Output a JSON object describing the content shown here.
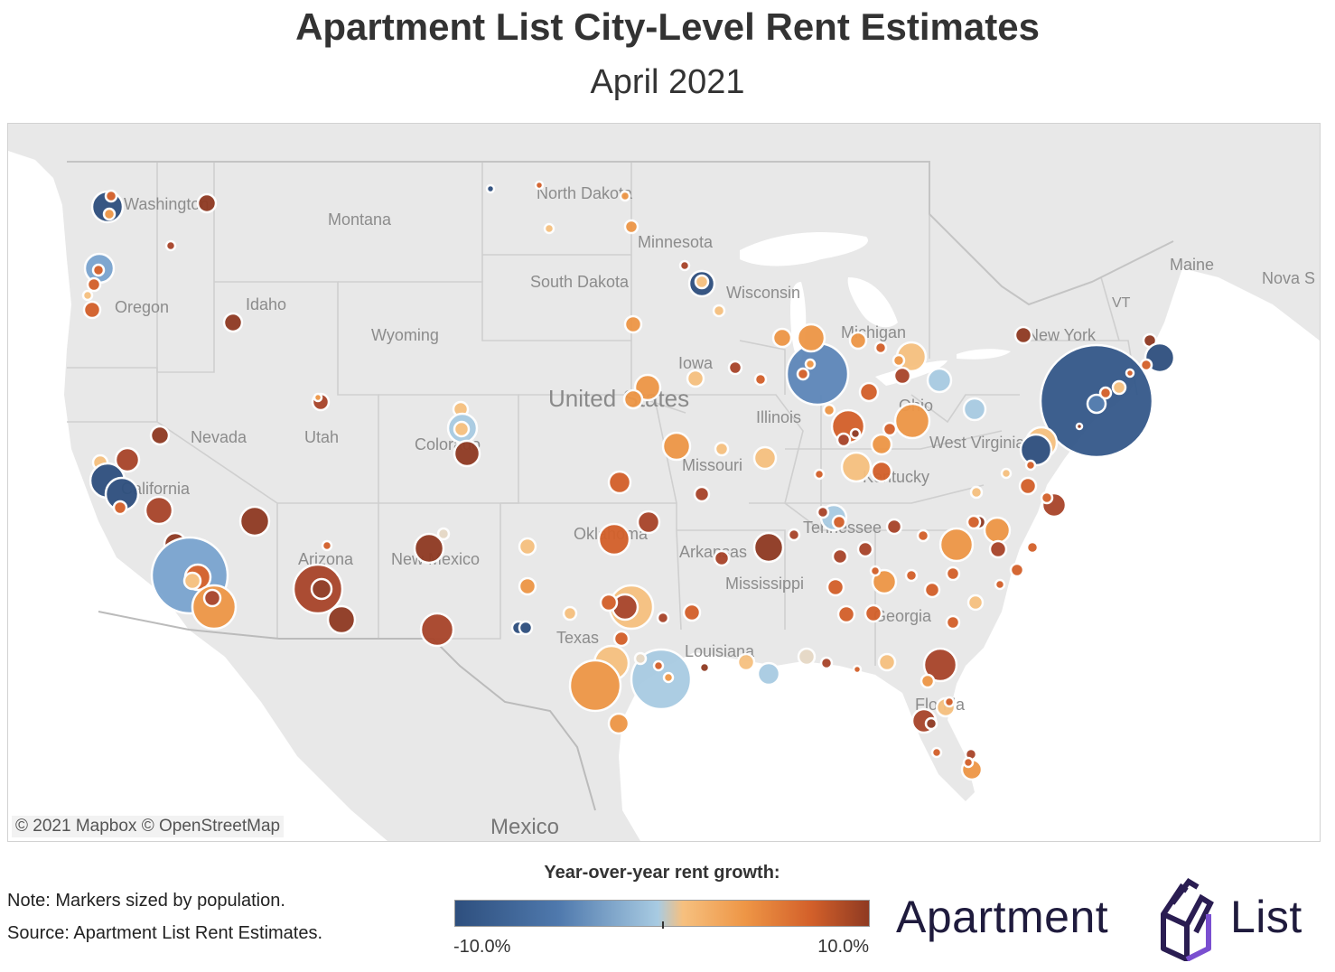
{
  "title": "Apartment List City-Level Rent Estimates",
  "subtitle": "April 2021",
  "map": {
    "attribution": "© 2021 Mapbox  © OpenStreetMap",
    "place_labels": [
      "Washington",
      "Montana",
      "North Dakota",
      "Minnesota",
      "Maine",
      "Nova S",
      "Oregon",
      "Idaho",
      "South Dakota",
      "Wisconsin",
      "VT",
      "Wyoming",
      "Michigan",
      "New York",
      "Iowa",
      "United States",
      "Illinois",
      "Nevada",
      "Utah",
      "Colorado",
      "West Virginia",
      "Ohio",
      "Missouri",
      "Kentucky",
      "California",
      "Tennessee",
      "Oklahoma",
      "Arkansas",
      "Arizona",
      "New Mexico",
      "Mississippi",
      "Georgia",
      "Texas",
      "Louisiana",
      "Florida",
      "Mexico"
    ]
  },
  "legend": {
    "title": "Year-over-year rent growth:",
    "min_label": "-10.0%",
    "max_label": "10.0%",
    "colors": [
      "#2e4f7e",
      "#4f79ad",
      "#a8cbe2",
      "#f6c07f",
      "#ee9646",
      "#d3602a",
      "#8f3a22"
    ]
  },
  "notes": {
    "line1": "Note: Markers sized by population.",
    "line2": "Source: Apartment List Rent Estimates."
  },
  "logo": {
    "left": "Apartment",
    "right": "List"
  }
}
